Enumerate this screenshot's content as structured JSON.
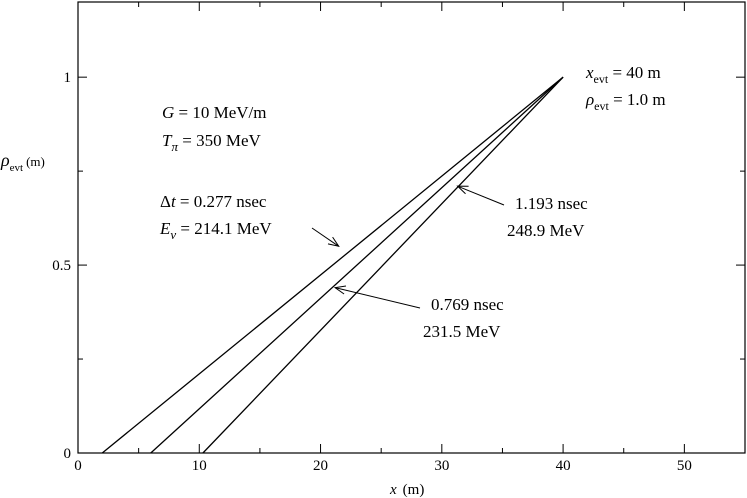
{
  "chart_data": {
    "type": "line",
    "xlabel": "x",
    "xlabel_unit": "(m)",
    "ylabel": "ρ",
    "ylabel_sub": "evt",
    "ylabel_unit": "(m)",
    "xlim": [
      0,
      55
    ],
    "ylim": [
      0,
      1.2
    ],
    "x_ticks": [
      0,
      10,
      20,
      30,
      40,
      50
    ],
    "y_ticks": [
      0,
      0.5,
      1
    ],
    "y_tick_labels": [
      "0",
      "0.5",
      "1"
    ],
    "grid": false,
    "series": [
      {
        "x": [
          2.0,
          40
        ],
        "y": [
          0,
          1.0
        ]
      },
      {
        "x": [
          6.0,
          40
        ],
        "y": [
          0,
          1.0
        ]
      },
      {
        "x": [
          10.3,
          40
        ],
        "y": [
          0,
          1.0
        ]
      }
    ],
    "annotations": {
      "params": {
        "G_sym": "G",
        "G_val": " = 10 MeV/m",
        "T_sym": "T",
        "T_sub": "π",
        "T_val": " = 350 MeV"
      },
      "event": {
        "x_sym": "x",
        "x_sub": "evt",
        "x_val": " = 40 m",
        "rho_sym": "ρ",
        "rho_sub": "evt",
        "rho_val": " = 1.0 m"
      },
      "line1": {
        "dt_sym": "Δ",
        "dt_t": "t",
        "dt_val": " =  0.277 nsec",
        "E_sym": "E",
        "E_sub": "ν",
        "E_val": " = 214.1 MeV",
        "arrow_to": {
          "x": 21.5,
          "y": 0.55
        }
      },
      "line2": {
        "time": "0.769 nsec",
        "energy": "231.5 MeV",
        "arrow_to": {
          "x": 21.2,
          "y": 0.44
        }
      },
      "line3": {
        "time": "1.193 nsec",
        "energy": "248.9 MeV",
        "arrow_to": {
          "x": 31.3,
          "y": 0.71
        }
      }
    }
  }
}
